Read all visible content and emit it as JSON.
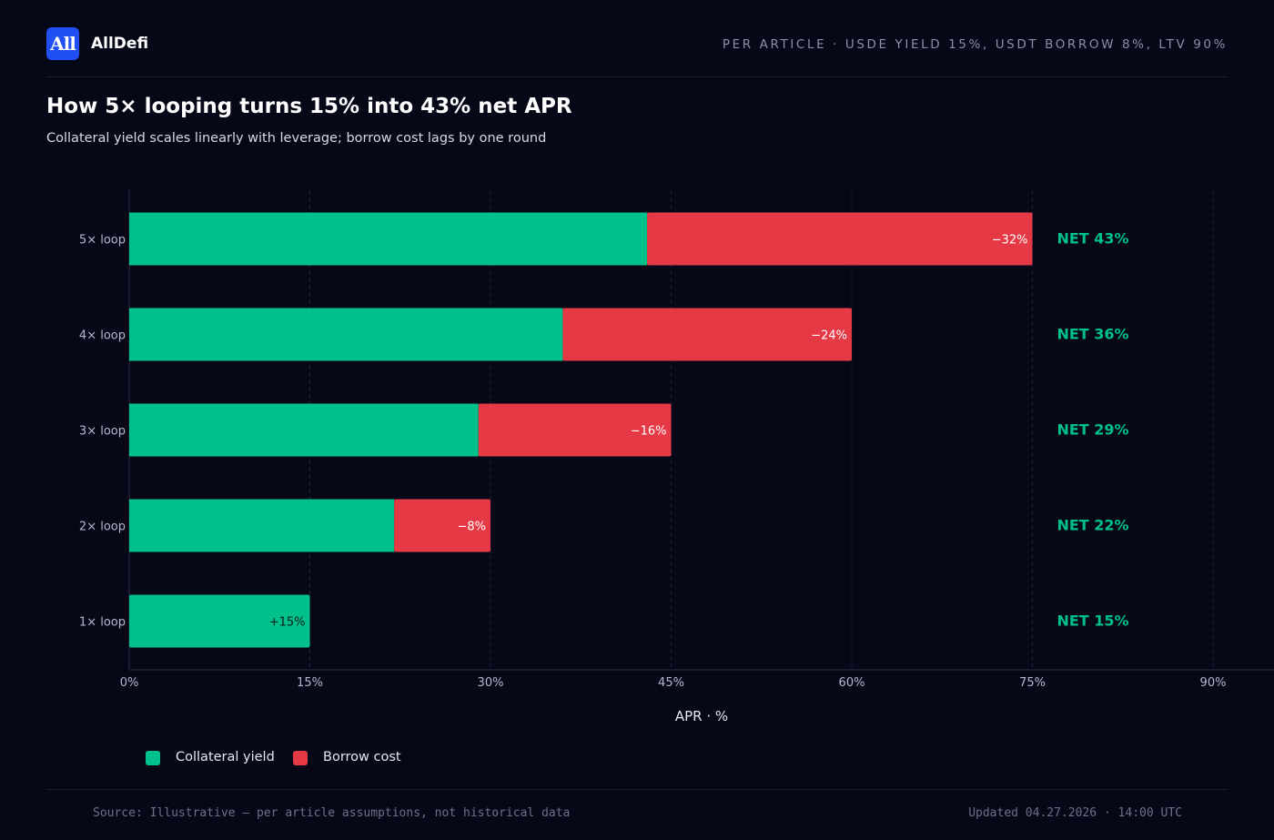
{
  "header": {
    "logo_text": "All",
    "brand": "AllDefi",
    "assumptions": "PER ARTICLE · USDE YIELD 15%, USDT BORROW 8%, LTV 90%"
  },
  "title": "How 5× looping turns 15% into 43% net APR",
  "subtitle": "Collateral yield scales linearly with leverage; borrow cost lags by one round",
  "colors": {
    "background": "#060818",
    "collateral": "#00c08b",
    "borrow": "#e63946",
    "net_text": "#00c08b",
    "brand_badge": "#1f4ff5"
  },
  "chart_data": {
    "type": "bar",
    "orientation": "horizontal",
    "stacked": true,
    "categories": [
      "5× loop",
      "4× loop",
      "3× loop",
      "2× loop",
      "1× loop"
    ],
    "series": [
      {
        "name": "Collateral yield",
        "values": [
          43,
          36,
          29,
          22,
          15
        ]
      },
      {
        "name": "Borrow cost",
        "values": [
          32,
          24,
          16,
          8,
          0
        ]
      }
    ],
    "bar_labels": [
      "−32%",
      "−24%",
      "−16%",
      "−8%",
      "+15%"
    ],
    "net_labels": [
      "NET 43%",
      "NET 36%",
      "NET 29%",
      "NET 22%",
      "NET 15%"
    ],
    "xlim": [
      0,
      90
    ],
    "xticks": [
      0,
      15,
      30,
      45,
      60,
      75,
      90
    ],
    "xtick_labels": [
      "0%",
      "15%",
      "30%",
      "45%",
      "60%",
      "75%",
      "90%"
    ],
    "xlabel": "APR · %",
    "ylabel": "",
    "grid": "vertical dashed",
    "legend_position": "bottom-left"
  },
  "legend": [
    {
      "label": "Collateral yield"
    },
    {
      "label": "Borrow cost"
    }
  ],
  "footer": {
    "source": "Source: Illustrative — per article assumptions, not historical data",
    "updated": "Updated 04.27.2026 · 14:00 UTC"
  }
}
